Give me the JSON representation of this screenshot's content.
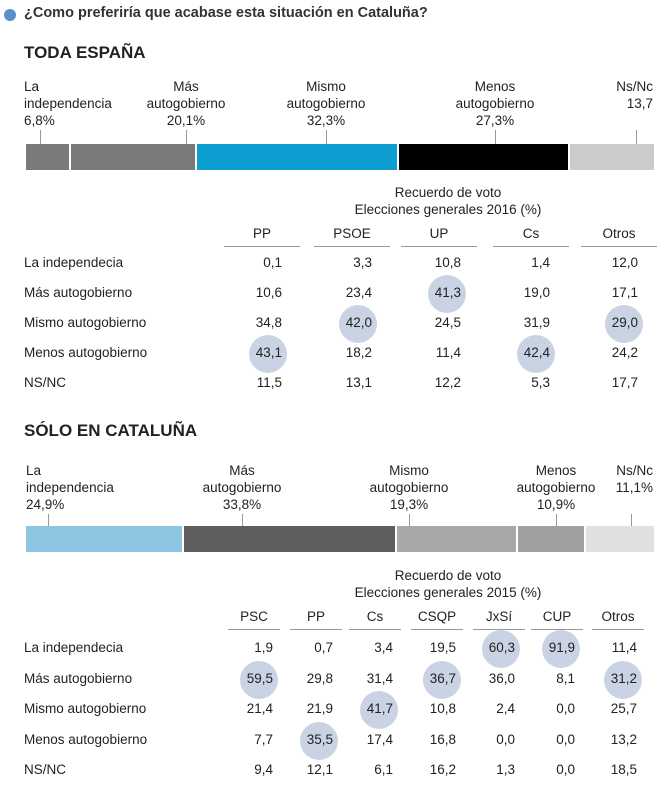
{
  "question": "¿Como preferiría que acabase esta situación en Cataluña?",
  "colors": {
    "question_dot": "#5a8fc7",
    "highlight": "#c9d3e3"
  },
  "chart_data": [
    {
      "type": "bar",
      "title": "TODA ESPAÑA",
      "orientation": "stacked-horizontal",
      "categories": [
        "La\nindependencia",
        "Más\nautogobierno",
        "Mismo\nautogobierno",
        "Menos\nautogobierno",
        "Ns/Nc"
      ],
      "value_labels": [
        "6,8%",
        "20,1%",
        "32,3%",
        "27,3%",
        "13,7"
      ],
      "values": [
        6.8,
        20.1,
        32.3,
        27.3,
        13.7
      ],
      "colors": [
        "#7a7a7a",
        "#7a7a7a",
        "#0e9fd2",
        "#000000",
        "#cbcbcb"
      ]
    },
    {
      "type": "table",
      "caption": "Recuerdo de voto\nElecciones generales 2016 (%)",
      "columns": [
        "PP",
        "PSOE",
        "UP",
        "Cs",
        "Otros"
      ],
      "rows": [
        {
          "label": "La independecia",
          "values": [
            "0,1",
            "3,3",
            "10,8",
            "1,4",
            "12,0"
          ]
        },
        {
          "label": "Más autogobierno",
          "values": [
            "10,6",
            "23,4",
            "41,3",
            "19,0",
            "17,1"
          ]
        },
        {
          "label": "Mismo autogobierno",
          "values": [
            "34,8",
            "42,0",
            "24,5",
            "31,9",
            "29,0"
          ]
        },
        {
          "label": "Menos autogobierno",
          "values": [
            "43,1",
            "18,2",
            "11,4",
            "42,4",
            "24,2"
          ]
        },
        {
          "label": "NS/NC",
          "values": [
            "11,5",
            "13,1",
            "12,2",
            "5,3",
            "17,7"
          ]
        }
      ],
      "highlighted": [
        [
          1,
          2
        ],
        [
          2,
          1
        ],
        [
          2,
          4
        ],
        [
          3,
          0
        ],
        [
          3,
          3
        ]
      ]
    },
    {
      "type": "bar",
      "title": "SÓLO EN CATALUÑA",
      "orientation": "stacked-horizontal",
      "categories": [
        "La\nindependencia",
        "Más\nautogobierno",
        "Mismo\nautogobierno",
        "Menos\nautogobierno",
        "Ns/Nc"
      ],
      "value_labels": [
        "24,9%",
        "33,8%",
        "19,3%",
        "10,9%",
        "11,1%"
      ],
      "values": [
        24.9,
        33.8,
        19.3,
        10.9,
        11.1
      ],
      "colors": [
        "#8cc4e1",
        "#5e5e5e",
        "#a8a8a8",
        "#a0a0a0",
        "#e0e0e0"
      ]
    },
    {
      "type": "table",
      "caption": "Recuerdo de voto\nElecciones generales 2015 (%)",
      "columns": [
        "PSC",
        "PP",
        "Cs",
        "CSQP",
        "JxSí",
        "CUP",
        "Otros"
      ],
      "rows": [
        {
          "label": "La independecia",
          "values": [
            "1,9",
            "0,7",
            "3,4",
            "19,5",
            "60,3",
            "91,9",
            "11,4"
          ]
        },
        {
          "label": "Más autogobierno",
          "values": [
            "59,5",
            "29,8",
            "31,4",
            "36,7",
            "36,0",
            "8,1",
            "31,2"
          ]
        },
        {
          "label": "Mismo autogobierno",
          "values": [
            "21,4",
            "21,9",
            "41,7",
            "10,8",
            "2,4",
            "0,0",
            "25,7"
          ]
        },
        {
          "label": "Menos autogobierno",
          "values": [
            "7,7",
            "35,5",
            "17,4",
            "16,8",
            "0,0",
            "0,0",
            "13,2"
          ]
        },
        {
          "label": "NS/NC",
          "values": [
            "9,4",
            "12,1",
            "6,1",
            "16,2",
            "1,3",
            "0,0",
            "18,5"
          ]
        }
      ],
      "highlighted": [
        [
          0,
          4
        ],
        [
          0,
          5
        ],
        [
          1,
          0
        ],
        [
          1,
          3
        ],
        [
          1,
          6
        ],
        [
          2,
          2
        ],
        [
          3,
          1
        ]
      ]
    }
  ]
}
